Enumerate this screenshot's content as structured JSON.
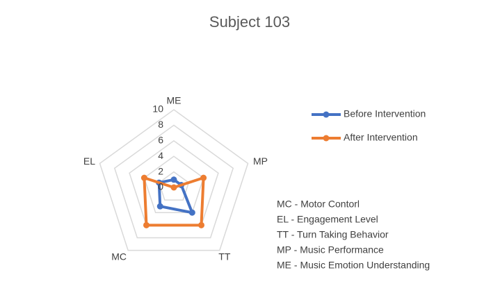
{
  "chart_data": {
    "type": "radar",
    "title": "Subject 103",
    "axes": [
      "ME",
      "MP",
      "TT",
      "MC",
      "EL"
    ],
    "rmax": 10,
    "ticks": [
      "0",
      "2",
      "4",
      "6",
      "8",
      "10"
    ],
    "tick_values": [
      0,
      2,
      4,
      6,
      8,
      10
    ],
    "series": [
      {
        "name": "Before Intervention",
        "color": "#4472C4",
        "values": [
          1,
          1,
          4,
          3,
          2
        ]
      },
      {
        "name": "After Intervention",
        "color": "#ED7D31",
        "values": [
          0,
          4,
          6,
          6,
          4
        ]
      }
    ],
    "legend_position": "right",
    "grid": true
  },
  "abbreviations": [
    "MC - Motor Contorl",
    "EL - Engagement Level",
    "TT - Turn Taking Behavior",
    "MP - Music Performance",
    "ME - Music Emotion Understanding"
  ]
}
